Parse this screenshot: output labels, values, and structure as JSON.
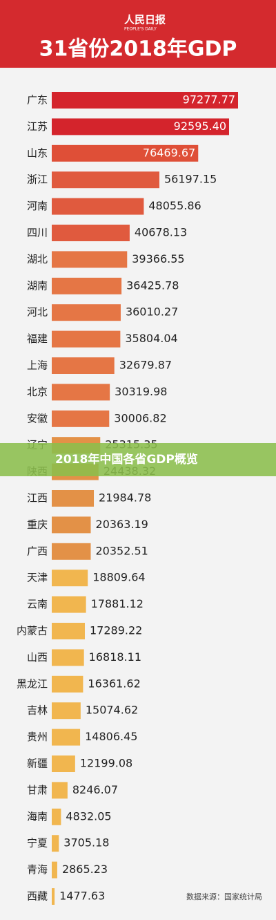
{
  "logo": {
    "name": "人民日报",
    "name_en": "PEOPLE'S DAILY"
  },
  "chart_data": {
    "type": "bar",
    "orientation": "horizontal",
    "title": "31省份2018年GDP",
    "categories": [
      "广东",
      "江苏",
      "山东",
      "浙江",
      "河南",
      "四川",
      "湖北",
      "湖南",
      "河北",
      "福建",
      "上海",
      "北京",
      "安徽",
      "辽宁",
      "陕西",
      "江西",
      "重庆",
      "广西",
      "天津",
      "云南",
      "内蒙古",
      "山西",
      "黑龙江",
      "吉林",
      "贵州",
      "新疆",
      "甘肃",
      "海南",
      "宁夏",
      "青海",
      "西藏"
    ],
    "values": [
      97277.77,
      92595.4,
      76469.67,
      56197.15,
      48055.86,
      40678.13,
      39366.55,
      36425.78,
      36010.27,
      35804.04,
      32679.87,
      30319.98,
      30006.82,
      25315.35,
      24438.32,
      21984.78,
      20363.19,
      20352.51,
      18809.64,
      17881.12,
      17289.22,
      16818.11,
      16361.62,
      15074.62,
      14806.45,
      12199.08,
      8246.07,
      4832.05,
      3705.18,
      2865.23,
      1477.63
    ],
    "value_labels": [
      "97277.77",
      "92595.40",
      "76469.67",
      "56197.15",
      "48055.86",
      "40678.13",
      "39366.55",
      "36425.78",
      "36010.27",
      "35804.04",
      "32679.87",
      "30319.98",
      "30006.82",
      "25315.35",
      "24438.32",
      "21984.78",
      "20363.19",
      "20352.51",
      "18809.64",
      "17881.12",
      "17289.22",
      "16818.11",
      "16361.62",
      "15074.62",
      "14806.45",
      "12199.08",
      "8246.07",
      "4832.05",
      "3705.18",
      "2865.23",
      "1477.63"
    ],
    "colors": [
      "#d4242c",
      "#d4242c",
      "#df4f37",
      "#e05a3e",
      "#e05a3e",
      "#e05a3e",
      "#e57645",
      "#e57645",
      "#e57645",
      "#e57645",
      "#e57645",
      "#e57645",
      "#e57645",
      "#e39147",
      "#e39147",
      "#e39147",
      "#e39147",
      "#e39147",
      "#f1b64f",
      "#f1b64f",
      "#f1b64f",
      "#f1b64f",
      "#f1b64f",
      "#f1b64f",
      "#f1b64f",
      "#f1b64f",
      "#f1b64f",
      "#f1b64f",
      "#f1b64f",
      "#f1b64f",
      "#f1b64f"
    ],
    "source": "数据来源：国家统计局"
  },
  "banner": {
    "text": "2018年中国各省GDP概览"
  }
}
